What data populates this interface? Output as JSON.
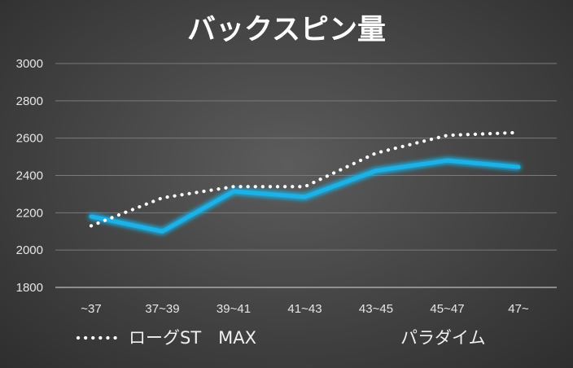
{
  "chart_data": {
    "type": "line",
    "title": "バックスピン量",
    "categories": [
      "~37",
      "37~39",
      "39~41",
      "41~43",
      "43~45",
      "45~47",
      "47~"
    ],
    "ylim": [
      1800,
      3000
    ],
    "yticks": [
      1800,
      2000,
      2200,
      2400,
      2600,
      2800,
      3000
    ],
    "grid": true,
    "legend_position": "bottom",
    "series": [
      {
        "name": "ローグST　MAX",
        "style": "dotted",
        "color": "#ffffff",
        "values": [
          2130,
          2280,
          2340,
          2340,
          2520,
          2615,
          2630
        ]
      },
      {
        "name": "パラダイム",
        "style": "solid",
        "color": "#1fb2e8",
        "values": [
          2180,
          2100,
          2315,
          2285,
          2425,
          2480,
          2445
        ]
      }
    ]
  }
}
